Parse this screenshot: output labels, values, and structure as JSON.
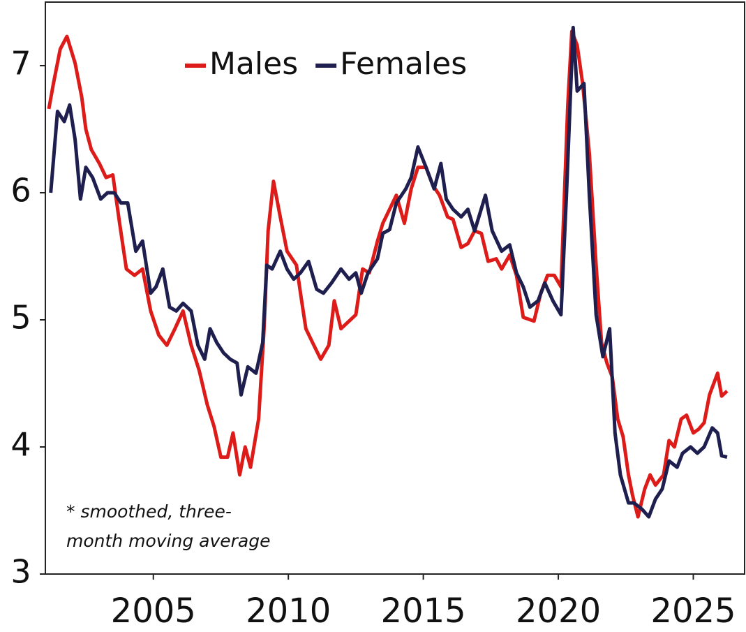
{
  "chart_data": {
    "type": "line",
    "annotation": "* smoothed, three-month moving average",
    "xlim": [
      2001,
      2026.9
    ],
    "ylim": [
      3,
      7.5
    ],
    "xticks": [
      2005,
      2010,
      2015,
      2020,
      2025
    ],
    "yticks": [
      3,
      4,
      5,
      6,
      7
    ],
    "legend": "top",
    "series": [
      {
        "name": "Males",
        "color": "#dd1c1a",
        "x": [
          2001.13,
          2001.3,
          2001.55,
          2001.8,
          2002.1,
          2002.35,
          2002.5,
          2002.7,
          2003.0,
          2003.25,
          2003.5,
          2003.75,
          2004.0,
          2004.3,
          2004.6,
          2004.9,
          2005.2,
          2005.5,
          2005.8,
          2006.1,
          2006.4,
          2006.7,
          2007.0,
          2007.25,
          2007.5,
          2007.75,
          2007.95,
          2008.2,
          2008.4,
          2008.6,
          2008.9,
          2009.1,
          2009.25,
          2009.45,
          2009.7,
          2009.95,
          2010.3,
          2010.45,
          2010.65,
          2010.9,
          2011.2,
          2011.5,
          2011.7,
          2011.95,
          2012.25,
          2012.5,
          2012.75,
          2013.0,
          2013.3,
          2013.5,
          2013.75,
          2014.0,
          2014.3,
          2014.55,
          2014.8,
          2015.1,
          2015.35,
          2015.6,
          2015.9,
          2016.1,
          2016.4,
          2016.65,
          2016.9,
          2017.15,
          2017.4,
          2017.7,
          2017.9,
          2018.2,
          2018.45,
          2018.7,
          2019.1,
          2019.35,
          2019.6,
          2019.85,
          2020.1,
          2020.35,
          2020.5,
          2020.7,
          2020.9,
          2021.15,
          2021.4,
          2021.6,
          2021.8,
          2022.0,
          2022.2,
          2022.4,
          2022.6,
          2022.75,
          2022.95,
          2023.2,
          2023.4,
          2023.6,
          2023.9,
          2024.1,
          2024.3,
          2024.55,
          2024.75,
          2025.0,
          2025.2,
          2025.4,
          2025.6,
          2025.9,
          2026.05,
          2026.25
        ],
        "values": [
          6.66,
          6.86,
          7.13,
          7.23,
          7.02,
          6.75,
          6.5,
          6.34,
          6.23,
          6.12,
          6.14,
          5.76,
          5.4,
          5.35,
          5.4,
          5.07,
          4.88,
          4.8,
          4.93,
          5.07,
          4.8,
          4.6,
          4.33,
          4.16,
          3.92,
          3.92,
          4.11,
          3.78,
          4.0,
          3.84,
          4.22,
          4.93,
          5.7,
          6.09,
          5.81,
          5.54,
          5.43,
          5.21,
          4.93,
          4.82,
          4.69,
          4.8,
          5.15,
          4.93,
          4.99,
          5.04,
          5.4,
          5.37,
          5.62,
          5.76,
          5.87,
          5.98,
          5.76,
          6.03,
          6.2,
          6.2,
          6.06,
          5.98,
          5.81,
          5.79,
          5.57,
          5.6,
          5.7,
          5.68,
          5.46,
          5.48,
          5.4,
          5.51,
          5.35,
          5.02,
          4.99,
          5.21,
          5.35,
          5.35,
          5.26,
          6.69,
          7.27,
          7.16,
          6.86,
          6.31,
          5.43,
          4.82,
          4.66,
          4.55,
          4.22,
          4.08,
          3.78,
          3.62,
          3.45,
          3.67,
          3.78,
          3.7,
          3.78,
          4.05,
          4.0,
          4.22,
          4.25,
          4.11,
          4.14,
          4.19,
          4.41,
          4.58,
          4.4,
          4.44
        ]
      },
      {
        "name": "Females",
        "color": "#1f1f4f",
        "x": [
          2001.2,
          2001.45,
          2001.7,
          2001.9,
          2002.1,
          2002.3,
          2002.5,
          2002.75,
          2003.05,
          2003.3,
          2003.55,
          2003.8,
          2004.05,
          2004.35,
          2004.6,
          2004.9,
          2005.1,
          2005.35,
          2005.6,
          2005.85,
          2006.1,
          2006.4,
          2006.65,
          2006.9,
          2007.1,
          2007.35,
          2007.6,
          2007.85,
          2008.1,
          2008.25,
          2008.5,
          2008.8,
          2009.05,
          2009.2,
          2009.4,
          2009.7,
          2009.95,
          2010.2,
          2010.45,
          2010.75,
          2011.05,
          2011.3,
          2011.6,
          2011.95,
          2012.25,
          2012.5,
          2012.7,
          2012.95,
          2013.3,
          2013.5,
          2013.75,
          2014.0,
          2014.35,
          2014.55,
          2014.8,
          2015.1,
          2015.4,
          2015.65,
          2015.85,
          2016.1,
          2016.4,
          2016.65,
          2016.9,
          2017.3,
          2017.55,
          2017.9,
          2018.2,
          2018.45,
          2018.7,
          2018.95,
          2019.25,
          2019.5,
          2019.8,
          2020.1,
          2020.3,
          2020.55,
          2020.7,
          2020.95,
          2021.15,
          2021.4,
          2021.65,
          2021.9,
          2022.1,
          2022.3,
          2022.6,
          2022.8,
          2023.1,
          2023.35,
          2023.6,
          2023.85,
          2024.1,
          2024.4,
          2024.6,
          2024.9,
          2025.15,
          2025.4,
          2025.7,
          2025.9,
          2026.05,
          2026.25
        ],
        "values": [
          6.0,
          6.64,
          6.56,
          6.69,
          6.42,
          5.95,
          6.2,
          6.12,
          5.95,
          6.0,
          6.0,
          5.92,
          5.92,
          5.54,
          5.62,
          5.21,
          5.26,
          5.4,
          5.1,
          5.07,
          5.13,
          5.07,
          4.8,
          4.69,
          4.93,
          4.82,
          4.74,
          4.69,
          4.66,
          4.41,
          4.63,
          4.58,
          4.82,
          5.43,
          5.4,
          5.54,
          5.4,
          5.32,
          5.37,
          5.46,
          5.24,
          5.21,
          5.29,
          5.4,
          5.32,
          5.37,
          5.21,
          5.37,
          5.48,
          5.68,
          5.71,
          5.92,
          6.03,
          6.12,
          6.36,
          6.2,
          6.03,
          6.23,
          5.95,
          5.87,
          5.81,
          5.87,
          5.7,
          5.98,
          5.7,
          5.54,
          5.59,
          5.37,
          5.26,
          5.1,
          5.15,
          5.29,
          5.15,
          5.04,
          5.98,
          7.3,
          6.8,
          6.86,
          5.98,
          5.04,
          4.71,
          4.93,
          4.11,
          3.78,
          3.56,
          3.56,
          3.51,
          3.45,
          3.59,
          3.67,
          3.89,
          3.84,
          3.95,
          4.0,
          3.95,
          4.0,
          4.15,
          4.11,
          3.93,
          3.92
        ]
      }
    ]
  }
}
